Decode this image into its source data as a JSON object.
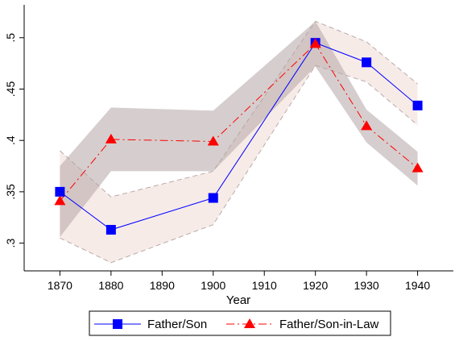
{
  "chart_data": {
    "type": "line",
    "xlabel": "Year",
    "ylabel": "",
    "xlim": [
      1863,
      1947
    ],
    "ylim": [
      0.273,
      0.532
    ],
    "x_ticks": [
      1870,
      1880,
      1890,
      1900,
      1910,
      1920,
      1930,
      1940
    ],
    "x_tick_labels": [
      "1870",
      "1880",
      "1890",
      "1900",
      "1910",
      "1920",
      "1930",
      "1940"
    ],
    "y_ticks": [
      0.3,
      0.35,
      0.4,
      0.45,
      0.5
    ],
    "y_tick_labels": [
      ".3",
      ".35",
      ".4",
      ".45",
      ".5"
    ],
    "grid": false,
    "legend_position": "bottom",
    "series": [
      {
        "name": "Father/Son",
        "color": "#0000ff",
        "band_color": "#f7ebe8",
        "band_edge_color": "#b8aaaa",
        "marker": "square",
        "line_style": "solid",
        "x": [
          1870,
          1880,
          1900,
          1920,
          1930,
          1940
        ],
        "y": [
          0.35,
          0.313,
          0.344,
          0.495,
          0.476,
          0.434
        ],
        "ci_low": [
          0.305,
          0.281,
          0.318,
          0.473,
          0.457,
          0.415
        ],
        "ci_high": [
          0.39,
          0.345,
          0.37,
          0.516,
          0.496,
          0.455
        ]
      },
      {
        "name": "Father/Son-in-Law",
        "color": "#ff0000",
        "band_color": "#b5a5a5",
        "band_opacity": 0.55,
        "marker": "triangle",
        "line_style": "dashed",
        "x": [
          1870,
          1880,
          1900,
          1920,
          1930,
          1940
        ],
        "y": [
          0.341,
          0.401,
          0.399,
          0.494,
          0.414,
          0.373
        ],
        "ci_low": [
          0.306,
          0.37,
          0.37,
          0.472,
          0.398,
          0.356
        ],
        "ci_high": [
          0.375,
          0.432,
          0.429,
          0.516,
          0.43,
          0.389
        ]
      }
    ]
  }
}
